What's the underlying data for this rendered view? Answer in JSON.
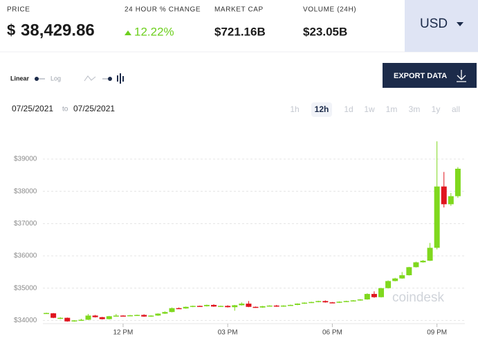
{
  "header": {
    "price_label": "PRICE",
    "currency_symbol": "$",
    "price": "38,429.86",
    "change_label": "24 HOUR % CHANGE",
    "change": "12.22%",
    "market_cap_label": "MARKET CAP",
    "market_cap": "$721.16B",
    "volume_label": "VOLUME (24H)",
    "volume": "$23.05B",
    "currency": "USD"
  },
  "toolbar": {
    "linear": "Linear",
    "log": "Log",
    "export": "EXPORT DATA",
    "date_from": "07/25/2021",
    "date_sep": "to",
    "date_to": "07/25/2021",
    "ranges": [
      "1h",
      "12h",
      "1d",
      "1w",
      "1m",
      "3m",
      "1y",
      "all"
    ],
    "range_selected": 1
  },
  "chart_data": {
    "type": "candlestick",
    "watermark": "coindesk",
    "up_color": "#7fd81e",
    "down_color": "#e0141e",
    "grid": true,
    "xlim": [
      9.7,
      21.8
    ],
    "ylim": [
      33750,
      39750
    ],
    "xticks": [
      {
        "value": 12,
        "label": "12 PM"
      },
      {
        "value": 15,
        "label": "03 PM"
      },
      {
        "value": 18,
        "label": "06 PM"
      },
      {
        "value": 21,
        "label": "09 PM"
      }
    ],
    "yticks": [
      {
        "value": 34000,
        "label": "$34000"
      },
      {
        "value": 35000,
        "label": "$35000"
      },
      {
        "value": 36000,
        "label": "$36000"
      },
      {
        "value": 37000,
        "label": "$37000"
      },
      {
        "value": 38000,
        "label": "$38000"
      },
      {
        "value": 39000,
        "label": "$39000"
      }
    ],
    "x": [
      9.8,
      10,
      10.2,
      10.4,
      10.6,
      10.8,
      11,
      11.2,
      11.4,
      11.6,
      11.8,
      12,
      12.2,
      12.4,
      12.6,
      12.8,
      13,
      13.2,
      13.4,
      13.6,
      13.8,
      14,
      14.2,
      14.4,
      14.6,
      14.8,
      15,
      15.2,
      15.4,
      15.6,
      15.8,
      16,
      16.2,
      16.4,
      16.6,
      16.8,
      17,
      17.2,
      17.4,
      17.6,
      17.8,
      18,
      18.2,
      18.4,
      18.6,
      18.8,
      19,
      19.2,
      19.4,
      19.6,
      19.8,
      20,
      20.2,
      20.4,
      20.6,
      20.8,
      21,
      21.2,
      21.4,
      21.6
    ],
    "open": [
      34210,
      34220,
      34060,
      34080,
      33970,
      34000,
      34020,
      34150,
      34100,
      34040,
      34130,
      34150,
      34140,
      34160,
      34170,
      34120,
      34150,
      34210,
      34260,
      34380,
      34370,
      34420,
      34450,
      34440,
      34480,
      34430,
      34450,
      34410,
      34470,
      34520,
      34420,
      34400,
      34440,
      34460,
      34430,
      34460,
      34480,
      34520,
      34550,
      34570,
      34600,
      34560,
      34550,
      34580,
      34600,
      34620,
      34650,
      34820,
      34720,
      35000,
      35220,
      35300,
      35400,
      35650,
      35800,
      35850,
      36250,
      38150,
      37600,
      37850
    ],
    "high": [
      34240,
      34230,
      34100,
      34090,
      34010,
      34050,
      34200,
      34170,
      34110,
      34140,
      34200,
      34160,
      34170,
      34180,
      34190,
      34160,
      34220,
      34280,
      34400,
      34400,
      34430,
      34460,
      34460,
      34490,
      34500,
      34460,
      34470,
      34480,
      34560,
      34600,
      34430,
      34450,
      34470,
      34480,
      34470,
      34490,
      34530,
      34560,
      34580,
      34610,
      34620,
      34570,
      34590,
      34610,
      34630,
      34660,
      34840,
      34900,
      35010,
      35240,
      35320,
      35500,
      35660,
      35820,
      35870,
      36400,
      39550,
      38600,
      37950,
      38750
    ],
    "low": [
      34200,
      34070,
      34040,
      33960,
      33960,
      33990,
      34010,
      34090,
      34030,
      34030,
      34120,
      34130,
      34130,
      34150,
      34110,
      34110,
      34140,
      34200,
      34250,
      34360,
      34360,
      34410,
      34430,
      34430,
      34420,
      34420,
      34400,
      34300,
      34460,
      34410,
      34390,
      34390,
      34430,
      34420,
      34420,
      34450,
      34470,
      34510,
      34540,
      34560,
      34550,
      34540,
      34540,
      34570,
      34590,
      34610,
      34640,
      34700,
      34710,
      34990,
      35210,
      35290,
      35390,
      35640,
      35790,
      35840,
      36200,
      37500,
      37550,
      37800
    ],
    "close": [
      34230,
      34080,
      34080,
      33970,
      34000,
      34020,
      34150,
      34100,
      34040,
      34130,
      34150,
      34140,
      34160,
      34170,
      34120,
      34150,
      34210,
      34260,
      34380,
      34370,
      34420,
      34450,
      34440,
      34480,
      34430,
      34450,
      34410,
      34470,
      34520,
      34420,
      34400,
      34440,
      34460,
      34430,
      34460,
      34480,
      34520,
      34550,
      34570,
      34600,
      34560,
      34550,
      34580,
      34600,
      34620,
      34650,
      34820,
      34720,
      35000,
      35220,
      35300,
      35400,
      35650,
      35800,
      35850,
      36250,
      38150,
      37600,
      37850,
      38700
    ]
  }
}
